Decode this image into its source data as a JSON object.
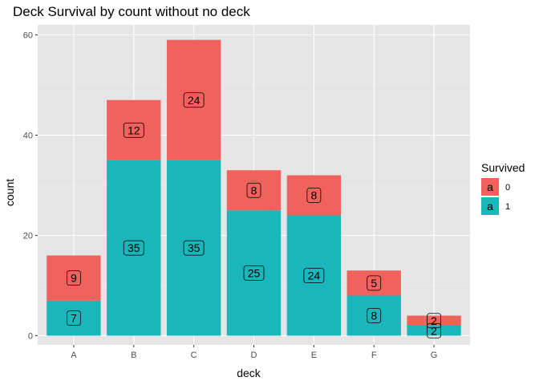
{
  "chart_data": {
    "type": "bar",
    "stacked": true,
    "title": "Deck Survival by count without no deck",
    "xlabel": "deck",
    "ylabel": "count",
    "categories": [
      "A",
      "B",
      "C",
      "D",
      "E",
      "F",
      "G"
    ],
    "series": [
      {
        "name": "1",
        "color": "#19B6BC",
        "values": [
          7,
          35,
          35,
          25,
          24,
          8,
          2
        ]
      },
      {
        "name": "0",
        "color": "#F2625D",
        "values": [
          9,
          12,
          24,
          8,
          8,
          5,
          2
        ]
      }
    ],
    "ylim": [
      0,
      62
    ],
    "yticks": [
      0,
      20,
      40,
      60
    ],
    "grid": true,
    "panel_background": "#E5E5E5",
    "legend": {
      "title": "Survived",
      "placement": "right",
      "key_glyph": "a",
      "entries": [
        {
          "label": "0",
          "color": "#F2625D"
        },
        {
          "label": "1",
          "color": "#19B6BC"
        }
      ]
    }
  }
}
